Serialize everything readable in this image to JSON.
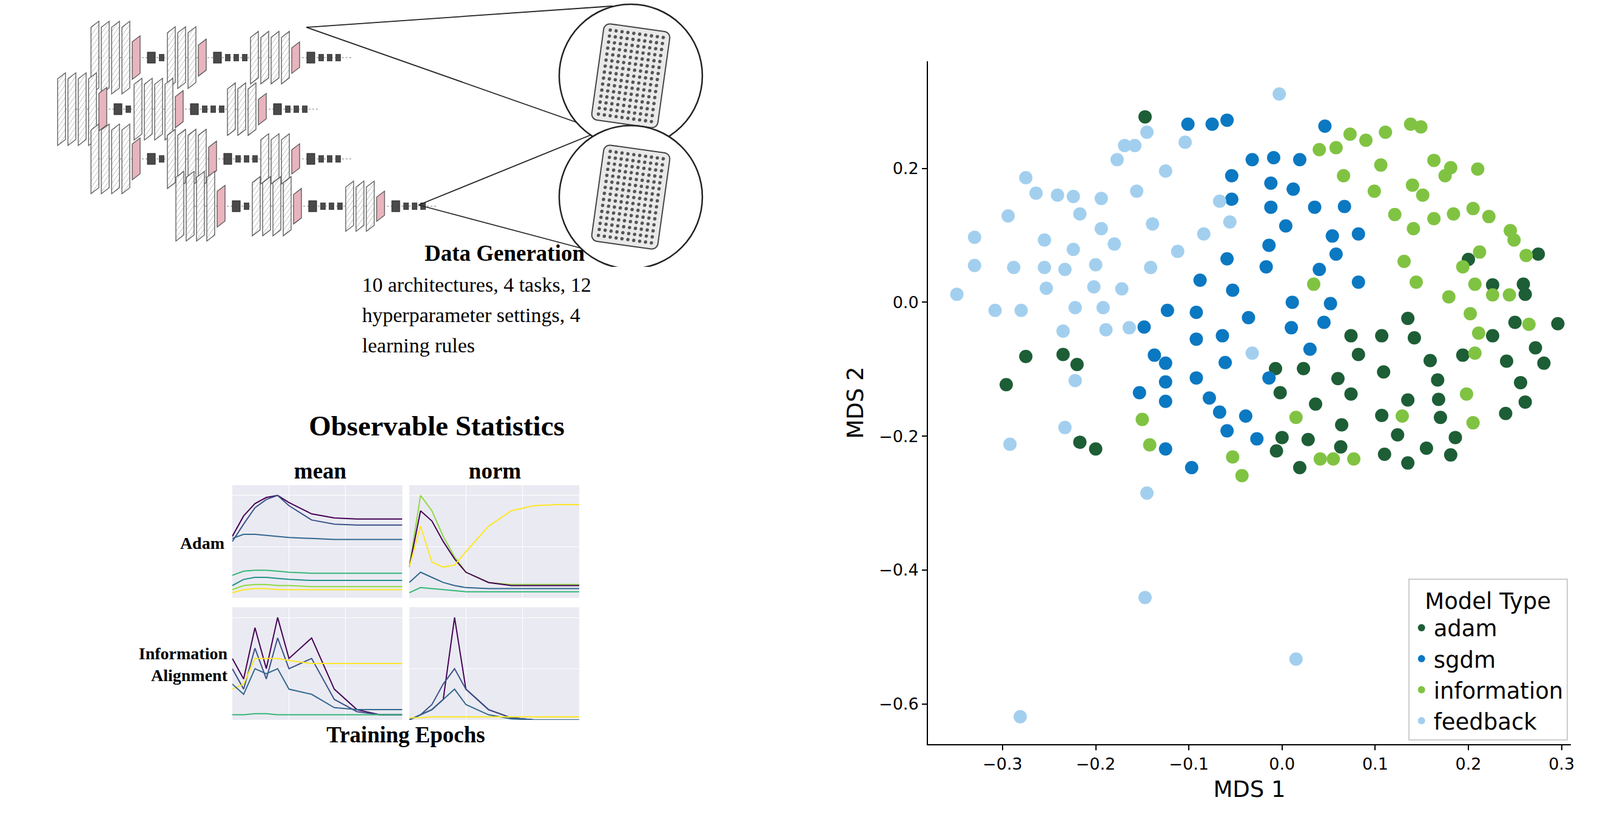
{
  "data_generation": {
    "title": "Data Generation",
    "text": "10 architectures, 4 tasks, 12 hyperparameter settings, 4 learning rules"
  },
  "observable_statistics": {
    "title": "Observable Statistics",
    "columns": [
      "mean",
      "norm"
    ],
    "rows": [
      "Adam",
      "Information Alignment"
    ],
    "x_label": "Training Epochs"
  },
  "chart_data": [
    {
      "type": "line",
      "tick_labels": false,
      "grid": true,
      "x": [
        0,
        2,
        4,
        6,
        8,
        10,
        14,
        18,
        22,
        26,
        30
      ],
      "xlim": [
        0,
        30
      ],
      "ylim": [
        0,
        1.1
      ],
      "xticks": [
        0,
        10,
        20,
        30
      ],
      "yticks": [
        0,
        0.5,
        1
      ],
      "series": [
        {
          "color": "#440154",
          "values": [
            0.6,
            0.8,
            0.92,
            0.98,
            1.0,
            0.93,
            0.82,
            0.78,
            0.77,
            0.77,
            0.77
          ]
        },
        {
          "color": "#3b528b",
          "values": [
            0.55,
            0.72,
            0.88,
            0.96,
            1.0,
            0.9,
            0.76,
            0.72,
            0.71,
            0.71,
            0.71
          ]
        },
        {
          "color": "#31688e",
          "values": [
            0.58,
            0.62,
            0.62,
            0.61,
            0.6,
            0.59,
            0.58,
            0.57,
            0.57,
            0.57,
            0.57
          ]
        },
        {
          "color": "#35b779",
          "values": [
            0.22,
            0.26,
            0.27,
            0.27,
            0.26,
            0.25,
            0.24,
            0.24,
            0.24,
            0.24,
            0.24
          ]
        },
        {
          "color": "#21918c",
          "values": [
            0.12,
            0.18,
            0.2,
            0.2,
            0.19,
            0.18,
            0.17,
            0.17,
            0.17,
            0.17,
            0.17
          ]
        },
        {
          "color": "#90d743",
          "values": [
            0.08,
            0.12,
            0.13,
            0.13,
            0.12,
            0.12,
            0.11,
            0.11,
            0.11,
            0.11,
            0.11
          ]
        },
        {
          "color": "#fde725",
          "values": [
            0.05,
            0.08,
            0.09,
            0.09,
            0.08,
            0.08,
            0.08,
            0.08,
            0.08,
            0.08,
            0.08
          ]
        }
      ]
    },
    {
      "type": "line",
      "tick_labels": false,
      "grid": true,
      "x": [
        0,
        2,
        4,
        6,
        8,
        10,
        14,
        18,
        22,
        26,
        30
      ],
      "xlim": [
        0,
        30
      ],
      "ylim": [
        0,
        1.1
      ],
      "xticks": [
        0,
        10,
        20,
        30
      ],
      "yticks": [
        0,
        0.5,
        1
      ],
      "series": [
        {
          "color": "#90d743",
          "values": [
            0.3,
            1.0,
            0.85,
            0.6,
            0.4,
            0.25,
            0.15,
            0.13,
            0.13,
            0.13,
            0.13
          ]
        },
        {
          "color": "#440154",
          "values": [
            0.3,
            0.85,
            0.75,
            0.55,
            0.38,
            0.25,
            0.15,
            0.12,
            0.12,
            0.12,
            0.12
          ]
        },
        {
          "color": "#fde725",
          "values": [
            0.3,
            0.7,
            0.35,
            0.3,
            0.32,
            0.45,
            0.7,
            0.85,
            0.9,
            0.91,
            0.91
          ]
        },
        {
          "color": "#31688e",
          "values": [
            0.15,
            0.25,
            0.2,
            0.15,
            0.12,
            0.1,
            0.09,
            0.09,
            0.09,
            0.09,
            0.09
          ]
        },
        {
          "color": "#35b779",
          "values": [
            0.05,
            0.1,
            0.09,
            0.08,
            0.07,
            0.06,
            0.06,
            0.06,
            0.06,
            0.06,
            0.06
          ]
        }
      ]
    },
    {
      "type": "line",
      "tick_labels": false,
      "grid": true,
      "x": [
        0,
        2,
        4,
        6,
        8,
        10,
        14,
        18,
        22,
        26,
        30
      ],
      "xlim": [
        0,
        30
      ],
      "ylim": [
        0,
        1.1
      ],
      "xticks": [
        0,
        10,
        20,
        30
      ],
      "yticks": [
        0,
        0.5,
        1
      ],
      "series": [
        {
          "color": "#440154",
          "values": [
            0.6,
            0.4,
            0.9,
            0.5,
            1.0,
            0.6,
            0.8,
            0.3,
            0.1,
            0.05,
            0.05
          ]
        },
        {
          "color": "#3b528b",
          "values": [
            0.5,
            0.3,
            0.7,
            0.4,
            0.8,
            0.5,
            0.6,
            0.2,
            0.08,
            0.05,
            0.05
          ]
        },
        {
          "color": "#fde725",
          "values": [
            0.3,
            0.35,
            0.6,
            0.6,
            0.6,
            0.58,
            0.55,
            0.55,
            0.55,
            0.55,
            0.55
          ]
        },
        {
          "color": "#31688e",
          "values": [
            0.35,
            0.25,
            0.5,
            0.45,
            0.5,
            0.3,
            0.25,
            0.12,
            0.1,
            0.1,
            0.1
          ]
        },
        {
          "color": "#35b779",
          "values": [
            0.05,
            0.05,
            0.06,
            0.06,
            0.05,
            0.05,
            0.05,
            0.05,
            0.05,
            0.05,
            0.05
          ]
        }
      ]
    },
    {
      "type": "line",
      "tick_labels": false,
      "grid": true,
      "x": [
        0,
        2,
        4,
        6,
        8,
        10,
        14,
        18,
        22,
        26,
        30
      ],
      "xlim": [
        0,
        30
      ],
      "ylim": [
        0,
        1.1
      ],
      "xticks": [
        0,
        10,
        20,
        30
      ],
      "yticks": [
        0,
        0.5,
        1
      ],
      "series": [
        {
          "color": "#440154",
          "values": [
            0.0,
            0.05,
            0.1,
            0.2,
            1.0,
            0.3,
            0.1,
            0.02,
            0.0,
            0.0,
            0.0
          ]
        },
        {
          "color": "#3b528b",
          "values": [
            0.0,
            0.05,
            0.15,
            0.35,
            0.5,
            0.3,
            0.1,
            0.02,
            0.0,
            0.0,
            0.0
          ]
        },
        {
          "color": "#31688e",
          "values": [
            0.0,
            0.05,
            0.1,
            0.2,
            0.3,
            0.15,
            0.05,
            0.01,
            0.0,
            0.0,
            0.0
          ]
        },
        {
          "color": "#fde725",
          "values": [
            0.02,
            0.02,
            0.03,
            0.03,
            0.03,
            0.03,
            0.03,
            0.03,
            0.03,
            0.03,
            0.03
          ]
        }
      ]
    },
    {
      "type": "scatter",
      "x_label": "MDS 1",
      "y_label": "MDS 2",
      "legend_title": "Model Type",
      "legend": "lower right",
      "marker": "circle",
      "grid": false,
      "xlim": [
        -0.38,
        0.31
      ],
      "ylim": [
        -0.66,
        0.36
      ],
      "xticks": [
        {
          "value": -0.3,
          "label": "−0.3"
        },
        {
          "value": -0.2,
          "label": "−0.2"
        },
        {
          "value": -0.1,
          "label": "−0.1"
        },
        {
          "value": 0,
          "label": "0.0"
        },
        {
          "value": 0.1,
          "label": "0.1"
        },
        {
          "value": 0.2,
          "label": "0.2"
        },
        {
          "value": 0.3,
          "label": "0.3"
        }
      ],
      "yticks": [
        {
          "value": -0.6,
          "label": "−0.6"
        },
        {
          "value": -0.4,
          "label": "−0.4"
        },
        {
          "value": -0.2,
          "label": "−0.2"
        },
        {
          "value": 0,
          "label": "0.0"
        },
        {
          "value": 0.2,
          "label": "0.2"
        }
      ],
      "series": [
        {
          "name": "adam",
          "color": "#1d5e36",
          "x": [
            -0.147,
            0.275,
            0.2,
            0.259,
            0.261,
            0.226,
            0.296,
            0.25,
            0.226,
            0.135,
            0.142,
            0.074,
            0.107,
            0.272,
            0.281,
            0.241,
            0.194,
            0.159,
            0.109,
            0.082,
            0.023,
            -0.007,
            0.256,
            0.167,
            0.06,
            -0.002,
            0.074,
            0.135,
            0.168,
            0.261,
            0.036,
            0.17,
            0.24,
            0.107,
            0.064,
            0.124,
            0.186,
            0.0,
            0.028,
            -0.006,
            0.063,
            0.11,
            0.155,
            0.181,
            0.135,
            0.019,
            -0.275,
            -0.235,
            -0.22,
            -0.296,
            -0.217,
            -0.2
          ],
          "y": [
            0.277,
            0.072,
            0.064,
            0.027,
            0.012,
            0.026,
            -0.032,
            -0.03,
            -0.05,
            -0.024,
            -0.053,
            -0.05,
            -0.05,
            -0.068,
            -0.091,
            -0.088,
            -0.079,
            -0.087,
            -0.104,
            -0.078,
            -0.099,
            -0.099,
            -0.12,
            -0.116,
            -0.114,
            -0.135,
            -0.137,
            -0.146,
            -0.145,
            -0.149,
            -0.152,
            -0.172,
            -0.166,
            -0.169,
            -0.183,
            -0.198,
            -0.202,
            -0.202,
            -0.205,
            -0.222,
            -0.216,
            -0.227,
            -0.218,
            -0.228,
            -0.24,
            -0.247,
            -0.081,
            -0.078,
            -0.093,
            -0.123,
            -0.209,
            -0.219
          ]
        },
        {
          "name": "sgdm",
          "color": "#0b78c2",
          "x": [
            -0.101,
            -0.075,
            -0.059,
            0.046,
            -0.032,
            -0.009,
            0.019,
            -0.054,
            -0.012,
            0.012,
            -0.054,
            -0.012,
            0.004,
            0.035,
            0.067,
            0.054,
            0.082,
            -0.014,
            -0.059,
            0.058,
            -0.017,
            0.04,
            -0.088,
            -0.053,
            0.011,
            0.052,
            0.082,
            -0.092,
            -0.123,
            -0.148,
            -0.092,
            -0.064,
            -0.036,
            0.01,
            0.045,
            0.03,
            -0.137,
            -0.125,
            -0.061,
            -0.153,
            -0.125,
            -0.092,
            -0.014,
            -0.125,
            -0.078,
            -0.067,
            -0.039,
            -0.059,
            -0.027,
            -0.125,
            -0.097
          ],
          "y": [
            0.266,
            0.266,
            0.272,
            0.263,
            0.213,
            0.216,
            0.213,
            0.189,
            0.178,
            0.169,
            0.154,
            0.142,
            0.114,
            0.142,
            0.143,
            0.099,
            0.102,
            0.085,
            0.065,
            0.072,
            0.053,
            0.049,
            0.033,
            0.018,
            0.0,
            -0.002,
            0.03,
            -0.015,
            -0.012,
            -0.037,
            -0.055,
            -0.05,
            -0.023,
            -0.038,
            -0.03,
            -0.07,
            -0.079,
            -0.091,
            -0.09,
            -0.135,
            -0.119,
            -0.113,
            -0.113,
            -0.148,
            -0.143,
            -0.164,
            -0.17,
            -0.192,
            -0.204,
            -0.219,
            -0.247
          ]
        },
        {
          "name": "information",
          "color": "#80c342",
          "x": [
            0.073,
            0.09,
            0.111,
            0.138,
            0.149,
            0.04,
            0.058,
            0.106,
            0.163,
            0.181,
            0.066,
            0.14,
            0.151,
            0.175,
            0.21,
            0.099,
            0.121,
            0.141,
            0.163,
            0.184,
            0.205,
            0.222,
            0.245,
            0.249,
            0.262,
            0.212,
            0.131,
            0.194,
            0.144,
            0.034,
            0.179,
            0.207,
            0.244,
            0.202,
            0.226,
            0.265,
            0.211,
            0.207,
            0.198,
            0.205,
            0.129,
            0.015,
            -0.15,
            -0.142,
            -0.053,
            -0.043,
            0.041,
            0.055,
            0.077
          ],
          "y": [
            0.251,
            0.242,
            0.254,
            0.266,
            0.262,
            0.228,
            0.231,
            0.205,
            0.212,
            0.201,
            0.189,
            0.175,
            0.16,
            0.189,
            0.199,
            0.166,
            0.131,
            0.11,
            0.125,
            0.132,
            0.14,
            0.128,
            0.107,
            0.093,
            0.07,
            0.075,
            0.061,
            0.053,
            0.03,
            0.027,
            0.008,
            0.027,
            0.011,
            -0.017,
            0.011,
            -0.033,
            -0.046,
            -0.076,
            -0.137,
            -0.18,
            -0.17,
            -0.172,
            -0.175,
            -0.213,
            -0.231,
            -0.259,
            -0.234,
            -0.234,
            -0.234
          ]
        },
        {
          "name": "feedback",
          "color": "#a3cfef",
          "x": [
            -0.003,
            -0.145,
            -0.169,
            -0.158,
            -0.104,
            -0.177,
            -0.275,
            -0.264,
            -0.241,
            -0.224,
            -0.125,
            -0.156,
            -0.194,
            -0.217,
            -0.067,
            -0.294,
            -0.194,
            -0.139,
            -0.084,
            -0.056,
            -0.33,
            -0.255,
            -0.224,
            -0.18,
            -0.112,
            -0.2,
            -0.141,
            -0.33,
            -0.288,
            -0.255,
            -0.233,
            -0.202,
            -0.253,
            -0.172,
            -0.349,
            -0.308,
            -0.28,
            -0.222,
            -0.192,
            -0.235,
            -0.189,
            -0.164,
            -0.032,
            -0.222,
            -0.233,
            -0.292,
            -0.145,
            -0.147,
            0.015,
            -0.281
          ],
          "y": [
            0.311,
            0.254,
            0.234,
            0.234,
            0.239,
            0.213,
            0.186,
            0.163,
            0.16,
            0.158,
            0.196,
            0.166,
            0.155,
            0.132,
            0.151,
            0.129,
            0.11,
            0.117,
            0.102,
            0.12,
            0.097,
            0.093,
            0.079,
            0.087,
            0.076,
            0.056,
            0.052,
            0.055,
            0.052,
            0.052,
            0.049,
            0.023,
            0.021,
            0.02,
            0.012,
            -0.012,
            -0.012,
            -0.008,
            -0.008,
            -0.043,
            -0.041,
            -0.038,
            -0.076,
            -0.117,
            -0.187,
            -0.212,
            -0.285,
            -0.441,
            -0.533,
            -0.619
          ]
        }
      ]
    }
  ]
}
